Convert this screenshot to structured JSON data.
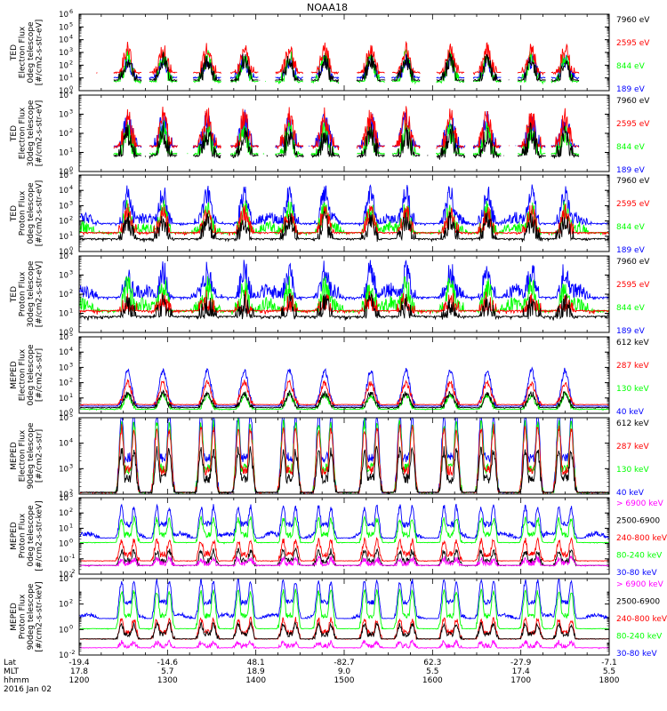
{
  "title": "NOAA18",
  "colors": {
    "blue": "#0000ff",
    "red": "#ff0000",
    "green": "#00ff00",
    "black": "#000000",
    "magenta": "#ff00ff",
    "axis": "#000000"
  },
  "chart_data": {
    "type": "line",
    "xlim_hours": [
      12.0,
      18.0
    ],
    "ticks": [
      {
        "lat": "-19.4",
        "mlt": "17.8",
        "hhmm": "1200"
      },
      {
        "lat": "-14.6",
        "mlt": "5.7",
        "hhmm": "1300"
      },
      {
        "lat": "48.1",
        "mlt": "18.9",
        "hhmm": "1400"
      },
      {
        "lat": "-82.7",
        "mlt": "9.0",
        "hhmm": "1500"
      },
      {
        "lat": "62.3",
        "mlt": "5.5",
        "hhmm": "1600"
      },
      {
        "lat": "-27.9",
        "mlt": "17.4",
        "hhmm": "1700"
      },
      {
        "lat": "-7.1",
        "mlt": "5.5",
        "hhmm": "1800"
      }
    ],
    "row_labels": [
      "Lat",
      "MLT",
      "hhmm"
    ],
    "date": "2016 Jan 02",
    "passes_hours": [
      12.55,
      12.95,
      13.45,
      13.87,
      14.38,
      14.78,
      15.3,
      15.7,
      16.2,
      16.62,
      17.12,
      17.5
    ],
    "panels": [
      {
        "ylabel": [
          "TED",
          "Electron Flux",
          "0deg telescope",
          "[#/cm2-s-str-eV]"
        ],
        "exps": [
          "10",
          "0",
          "1",
          "2",
          "3",
          "4",
          "5",
          "6"
        ],
        "ylog": [
          0,
          6
        ],
        "legend": [
          {
            "text": "7960 eV",
            "color": "black"
          },
          {
            "text": "2595 eV",
            "color": "red"
          },
          {
            "text": "844 eV",
            "color": "green"
          },
          {
            "text": "189 eV",
            "color": "blue"
          }
        ],
        "style": "ted_e",
        "series": [
          {
            "name": "189 eV",
            "color": "blue",
            "base": 0.8,
            "peak": 2.4
          },
          {
            "name": "844 eV",
            "color": "green",
            "base": 0.5,
            "peak": 2.7
          },
          {
            "name": "2595 eV",
            "color": "red",
            "base": 1.2,
            "peak": 3.2
          },
          {
            "name": "7960 eV",
            "color": "black",
            "base": 0.6,
            "peak": 2.4
          }
        ]
      },
      {
        "ylabel": [
          "TED",
          "Electron Flux",
          "30deg telescope",
          "[#/cm2-s-str-eV]"
        ],
        "exps": [
          "10",
          "0",
          "1",
          "2",
          "3",
          "4"
        ],
        "ylog": [
          0,
          4
        ],
        "legend": [
          {
            "text": "7960 eV",
            "color": "black"
          },
          {
            "text": "2595 eV",
            "color": "red"
          },
          {
            "text": "844 eV",
            "color": "green"
          },
          {
            "text": "189 eV",
            "color": "blue"
          }
        ],
        "style": "ted_e",
        "series": [
          {
            "name": "189 eV",
            "color": "blue",
            "base": 1.1,
            "peak": 2.6
          },
          {
            "name": "844 eV",
            "color": "green",
            "base": 0.7,
            "peak": 2.1
          },
          {
            "name": "2595 eV",
            "color": "red",
            "base": 1.1,
            "peak": 2.8
          },
          {
            "name": "7960 eV",
            "color": "black",
            "base": 0.6,
            "peak": 2.0
          }
        ]
      },
      {
        "ylabel": [
          "TED",
          "Proton Flux",
          "0deg telescope",
          "[#/cm2-s-str-eV]"
        ],
        "exps": [
          "10",
          "0",
          "1",
          "2",
          "3",
          "4",
          "5"
        ],
        "ylog": [
          0,
          5
        ],
        "legend": [
          {
            "text": "7960 eV",
            "color": "black"
          },
          {
            "text": "2595 eV",
            "color": "red"
          },
          {
            "text": "844 eV",
            "color": "green"
          },
          {
            "text": "189 eV",
            "color": "blue"
          }
        ],
        "style": "ted_p",
        "series": [
          {
            "name": "189 eV",
            "color": "blue",
            "base": 1.6,
            "peak": 3.8
          },
          {
            "name": "844 eV",
            "color": "green",
            "base": 1.0,
            "peak": 2.8
          },
          {
            "name": "2595 eV",
            "color": "red",
            "base": 1.0,
            "peak": 2.5
          },
          {
            "name": "7960 eV",
            "color": "black",
            "base": 0.6,
            "peak": 2.0
          }
        ]
      },
      {
        "ylabel": [
          "TED",
          "Proton Flux",
          "30deg telescope",
          "[#/cm2-s-str-eV]"
        ],
        "exps": [
          "10",
          "0",
          "1",
          "2",
          "3",
          "4"
        ],
        "ylog": [
          0,
          4
        ],
        "legend": [
          {
            "text": "7960 eV",
            "color": "black"
          },
          {
            "text": "2595 eV",
            "color": "red"
          },
          {
            "text": "844 eV",
            "color": "green"
          },
          {
            "text": "189 eV",
            "color": "blue"
          }
        ],
        "style": "ted_p",
        "series": [
          {
            "name": "189 eV",
            "color": "blue",
            "base": 1.6,
            "peak": 3.2
          },
          {
            "name": "844 eV",
            "color": "green",
            "base": 0.9,
            "peak": 2.4
          },
          {
            "name": "2595 eV",
            "color": "red",
            "base": 0.9,
            "peak": 1.6
          },
          {
            "name": "7960 eV",
            "color": "black",
            "base": 0.6,
            "peak": 1.4
          }
        ]
      },
      {
        "ylabel": [
          "MEPED",
          "Electron Flux",
          "0deg telescope",
          "[#/cm2-s-str]"
        ],
        "exps": [
          "10",
          "0",
          "1",
          "2",
          "3",
          "4",
          "5"
        ],
        "ylog": [
          0,
          5
        ],
        "legend": [
          {
            "text": "612 keV",
            "color": "black"
          },
          {
            "text": "287 keV",
            "color": "red"
          },
          {
            "text": "130 keV",
            "color": "green"
          },
          {
            "text": "40 keV",
            "color": "blue"
          }
        ],
        "style": "meped_e0",
        "series": [
          {
            "name": "40 keV",
            "color": "blue",
            "base": 0.4,
            "peak": 2.8
          },
          {
            "name": "130 keV",
            "color": "green",
            "base": 0.2,
            "peak": 1.2
          },
          {
            "name": "287 keV",
            "color": "red",
            "base": 0.5,
            "peak": 2.0
          },
          {
            "name": "612 keV",
            "color": "black",
            "base": 0.3,
            "peak": 1.3
          }
        ]
      },
      {
        "ylabel": [
          "MEPED",
          "Electron Flux",
          "90deg telescope",
          "[#/cm2-s-str]"
        ],
        "exps": [
          "10",
          "2",
          "3",
          "4",
          "5"
        ],
        "ylog": [
          2,
          5
        ],
        "legend": [
          {
            "text": "612 keV",
            "color": "black"
          },
          {
            "text": "287 keV",
            "color": "red"
          },
          {
            "text": "130 keV",
            "color": "green"
          },
          {
            "text": "40 keV",
            "color": "blue"
          }
        ],
        "style": "meped_e90",
        "series": [
          {
            "name": "40 keV",
            "color": "blue",
            "base": 2.0,
            "peak": 5.2
          },
          {
            "name": "130 keV",
            "color": "green",
            "base": 2.0,
            "peak": 4.8
          },
          {
            "name": "287 keV",
            "color": "red",
            "base": 2.0,
            "peak": 4.6
          },
          {
            "name": "612 keV",
            "color": "black",
            "base": 2.0,
            "peak": 3.7
          }
        ]
      },
      {
        "ylabel": [
          "MEPED",
          "Proton Flux",
          "0deg telescope",
          "[#/cm2-s-str-keV]"
        ],
        "exps": [
          "10",
          "-2",
          "-1",
          "0",
          "1",
          "2",
          "3"
        ],
        "ylog": [
          -2,
          3
        ],
        "legend": [
          {
            "text": "> 6900 keV",
            "color": "magenta"
          },
          {
            "text": "2500-6900",
            "color": "black"
          },
          {
            "text": "240-800 keV",
            "color": "red"
          },
          {
            "text": "80-240 keV",
            "color": "green"
          },
          {
            "text": "30-80 keV",
            "color": "blue"
          }
        ],
        "style": "meped_p0",
        "series": [
          {
            "name": "30-80 keV",
            "color": "blue",
            "base": 0.3,
            "peak": 2.4
          },
          {
            "name": "80-240 keV",
            "color": "green",
            "base": 0.0,
            "peak": 1.6
          },
          {
            "name": "240-800 keV",
            "color": "red",
            "base": -1.2,
            "peak": 0.2
          },
          {
            "name": "2500-6900",
            "color": "black",
            "base": -1.5,
            "peak": -0.5
          },
          {
            "name": "> 6900 keV",
            "color": "magenta",
            "base": -1.5,
            "peak": -1.0
          }
        ]
      },
      {
        "ylabel": [
          "MEPED",
          "Proton Flux",
          "90deg telescope",
          "[#/cm2-s-str-keV]"
        ],
        "exps": [
          "10",
          "-2",
          "0",
          "2",
          "4"
        ],
        "ylog": [
          -2,
          4
        ],
        "legend": [
          {
            "text": "> 6900 keV",
            "color": "magenta"
          },
          {
            "text": "2500-6900",
            "color": "black"
          },
          {
            "text": "240-800 keV",
            "color": "red"
          },
          {
            "text": "80-240 keV",
            "color": "green"
          },
          {
            "text": "30-80 keV",
            "color": "blue"
          }
        ],
        "style": "meped_p90",
        "series": [
          {
            "name": "30-80 keV",
            "color": "blue",
            "base": 0.8,
            "peak": 3.8
          },
          {
            "name": "80-240 keV",
            "color": "green",
            "base": 0.0,
            "peak": 3.0
          },
          {
            "name": "240-800 keV",
            "color": "red",
            "base": -0.8,
            "peak": 0.8
          },
          {
            "name": "2500-6900",
            "color": "black",
            "base": -0.8,
            "peak": 0.4
          },
          {
            "name": "> 6900 keV",
            "color": "magenta",
            "base": -1.5,
            "peak": -1.0
          }
        ]
      }
    ]
  }
}
